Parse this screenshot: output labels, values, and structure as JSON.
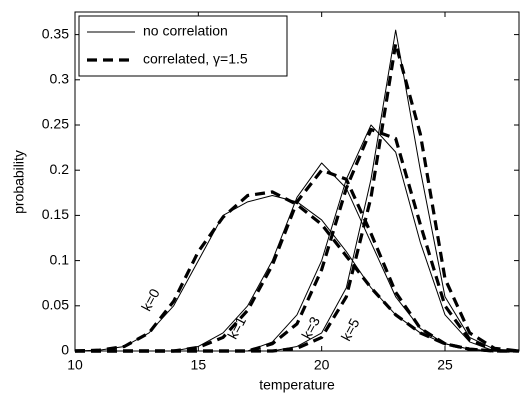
{
  "chart_data": {
    "type": "line",
    "xlabel": "temperature",
    "ylabel": "probability",
    "x": [
      10,
      11,
      12,
      13,
      14,
      15,
      16,
      17,
      18,
      19,
      20,
      21,
      22,
      23,
      24,
      25,
      26,
      27,
      28
    ],
    "xlim": [
      10,
      28
    ],
    "xticks": [
      10,
      15,
      20,
      25
    ],
    "ylim": [
      0,
      0.375
    ],
    "yticks": [
      0,
      0.05,
      0.1,
      0.15,
      0.2,
      0.25,
      0.3,
      0.35
    ],
    "color": "#000000",
    "legend_position": "upper left",
    "curve_labels": [
      "k=0",
      "k=1",
      "k=3",
      "k=5"
    ],
    "series": [
      {
        "name": "no correlation",
        "dashed": false,
        "curves": [
          [
            0,
            0.001,
            0.005,
            0.02,
            0.05,
            0.1,
            0.15,
            0.165,
            0.172,
            0.165,
            0.145,
            0.11,
            0.07,
            0.04,
            0.02,
            0.008,
            0.002,
            0,
            0
          ],
          [
            0,
            0,
            0,
            0,
            0,
            0.005,
            0.02,
            0.05,
            0.1,
            0.17,
            0.208,
            0.18,
            0.12,
            0.06,
            0.025,
            0.008,
            0.002,
            0,
            0
          ],
          [
            0,
            0,
            0,
            0,
            0,
            0,
            0,
            0,
            0.01,
            0.04,
            0.1,
            0.19,
            0.25,
            0.22,
            0.12,
            0.04,
            0.01,
            0,
            0
          ],
          [
            0,
            0,
            0,
            0,
            0,
            0,
            0,
            0,
            0,
            0.005,
            0.02,
            0.07,
            0.19,
            0.355,
            0.2,
            0.06,
            0.015,
            0.002,
            0
          ]
        ]
      },
      {
        "name": "correlated, γ=1.5",
        "dashed": true,
        "curves": [
          [
            0,
            0.001,
            0.005,
            0.02,
            0.055,
            0.11,
            0.148,
            0.172,
            0.176,
            0.162,
            0.14,
            0.105,
            0.07,
            0.04,
            0.02,
            0.008,
            0.002,
            0,
            0
          ],
          [
            0,
            0,
            0,
            0,
            0,
            0.004,
            0.015,
            0.045,
            0.095,
            0.165,
            0.2,
            0.19,
            0.13,
            0.065,
            0.025,
            0.008,
            0.002,
            0,
            0
          ],
          [
            0,
            0,
            0,
            0,
            0,
            0,
            0,
            0,
            0.008,
            0.03,
            0.09,
            0.18,
            0.245,
            0.235,
            0.14,
            0.05,
            0.012,
            0.001,
            0
          ],
          [
            0,
            0,
            0,
            0,
            0,
            0,
            0,
            0,
            0,
            0.003,
            0.015,
            0.06,
            0.17,
            0.34,
            0.24,
            0.08,
            0.02,
            0.003,
            0
          ]
        ]
      }
    ]
  }
}
